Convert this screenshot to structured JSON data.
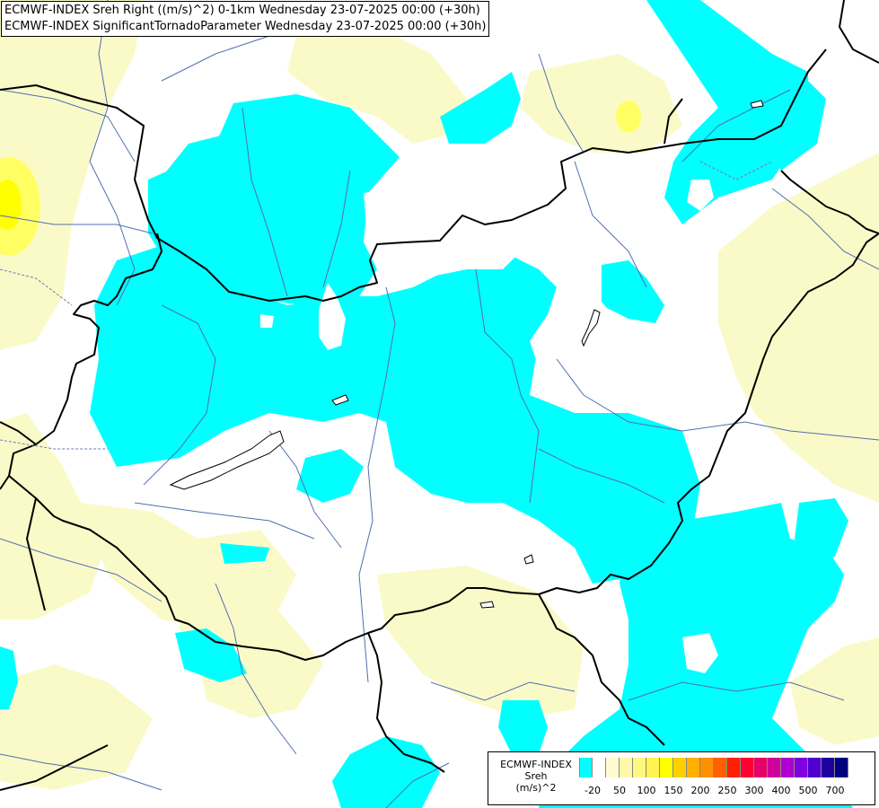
{
  "header": {
    "line1": "ECMWF-INDEX Sreh Right ((m/s)^2) 0-1km Wednesday 23-07-2025 00:00 (+30h)",
    "line2": "ECMWF-INDEX SignificantTornadoParameter Wednesday 23-07-2025 00:00 (+30h)"
  },
  "legend": {
    "title": "ECMWF-INDEX",
    "variable": "Sreh",
    "unit": "(m/s)^2",
    "colors": [
      "#00ffff",
      "#ffffff",
      "#fffad0",
      "#fff8a8",
      "#fff880",
      "#fff450",
      "#ffff00",
      "#ffd000",
      "#ffb000",
      "#ff9000",
      "#ff6000",
      "#ff2000",
      "#ff0030",
      "#e8006a",
      "#d0009a",
      "#b000d0",
      "#8000e0",
      "#5000d0",
      "#2000a0",
      "#000080"
    ],
    "ticks": [
      "-20",
      "50",
      "100",
      "150",
      "200",
      "250",
      "300",
      "400",
      "500",
      "700"
    ]
  },
  "colors": {
    "cyan": "#00ffff",
    "light_yellow": "#fafac8",
    "yellow": "#ffff64",
    "border": "#000000",
    "river": "#4f6fb0"
  }
}
